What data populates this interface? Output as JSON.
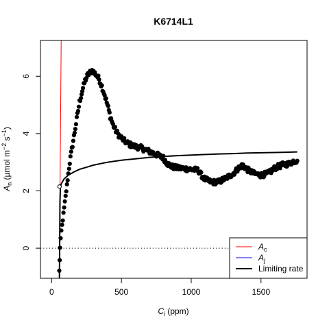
{
  "chart_data": {
    "type": "scatter",
    "title": "K6714L1",
    "xlabel": {
      "sym": "C",
      "sub": "i",
      "rest": " (ppm)"
    },
    "ylabel": {
      "sym": "A",
      "sub": "n",
      "mid": " (µmol m",
      "sup1": "−2",
      "mid2": " s",
      "sup2": "−1",
      "end": ")"
    },
    "xlim": [
      -80,
      1830
    ],
    "ylim": [
      -1.05,
      7.25
    ],
    "xticks": [
      0,
      500,
      1000,
      1500
    ],
    "yticks": [
      0,
      2,
      4,
      6
    ],
    "zero_line": "dotted",
    "legend": {
      "position": "bottom-right",
      "entries": [
        {
          "sym": "A",
          "sub": "c",
          "label": "",
          "color": "#ff0000",
          "width": 1
        },
        {
          "sym": "A",
          "sub": "j",
          "label": "",
          "color": "#0000ff",
          "width": 1
        },
        {
          "sym": "",
          "sub": "",
          "label": "Limiting rate",
          "color": "#000000",
          "width": 2
        }
      ]
    },
    "series": [
      {
        "kind": "Ac",
        "color": "#ff0000",
        "x": [
          55.5,
          68.5
        ],
        "y": [
          -1.05,
          7.25
        ]
      },
      {
        "kind": "limiting_rate",
        "color": "#000000",
        "x": [
          56,
          58,
          60,
          63,
          70,
          90,
          120,
          160,
          200,
          300,
          400,
          500,
          600,
          700,
          800,
          900,
          1000,
          1100,
          1200,
          1300,
          1400,
          1500,
          1600,
          1700,
          1760
        ],
        "y": [
          -1.05,
          0.2,
          1.6,
          2.15,
          2.25,
          2.42,
          2.55,
          2.66,
          2.75,
          2.9,
          3.0,
          3.07,
          3.12,
          3.17,
          3.2,
          3.23,
          3.25,
          3.27,
          3.29,
          3.3,
          3.32,
          3.33,
          3.34,
          3.35,
          3.36
        ]
      },
      {
        "kind": "open_point",
        "x": [
          57
        ],
        "y": [
          2.15
        ]
      }
    ],
    "measured_key_points": {
      "x": [
        55,
        58,
        60,
        65,
        70,
        80,
        90,
        100,
        110,
        120,
        130,
        140,
        150,
        160,
        170,
        180,
        190,
        200,
        220,
        240,
        260,
        280,
        290,
        300,
        320,
        340,
        360,
        380,
        400,
        420,
        440,
        460,
        480,
        500,
        520,
        540,
        560,
        580,
        600,
        640,
        680,
        720,
        760,
        800,
        830,
        860,
        900,
        950,
        1000,
        1050,
        1080,
        1100,
        1150,
        1200,
        1250,
        1300,
        1340,
        1370,
        1400,
        1450,
        1500,
        1550,
        1600,
        1650,
        1700,
        1740,
        1760
      ],
      "y": [
        -0.8,
        -0.4,
        0.0,
        0.3,
        0.6,
        1.0,
        1.4,
        1.8,
        2.2,
        2.6,
        3.0,
        3.3,
        3.6,
        3.9,
        4.2,
        4.5,
        4.8,
        5.1,
        5.5,
        5.85,
        6.05,
        6.15,
        6.2,
        6.15,
        6.05,
        5.9,
        5.65,
        5.35,
        5.0,
        4.6,
        4.3,
        4.1,
        3.95,
        3.85,
        3.75,
        3.68,
        3.62,
        3.58,
        3.55,
        3.5,
        3.42,
        3.33,
        3.25,
        3.15,
        2.95,
        2.85,
        2.8,
        2.78,
        2.75,
        2.72,
        2.5,
        2.4,
        2.3,
        2.32,
        2.45,
        2.6,
        2.8,
        2.9,
        2.75,
        2.6,
        2.55,
        2.6,
        2.8,
        2.9,
        2.95,
        3.05,
        3.05
      ]
    }
  }
}
